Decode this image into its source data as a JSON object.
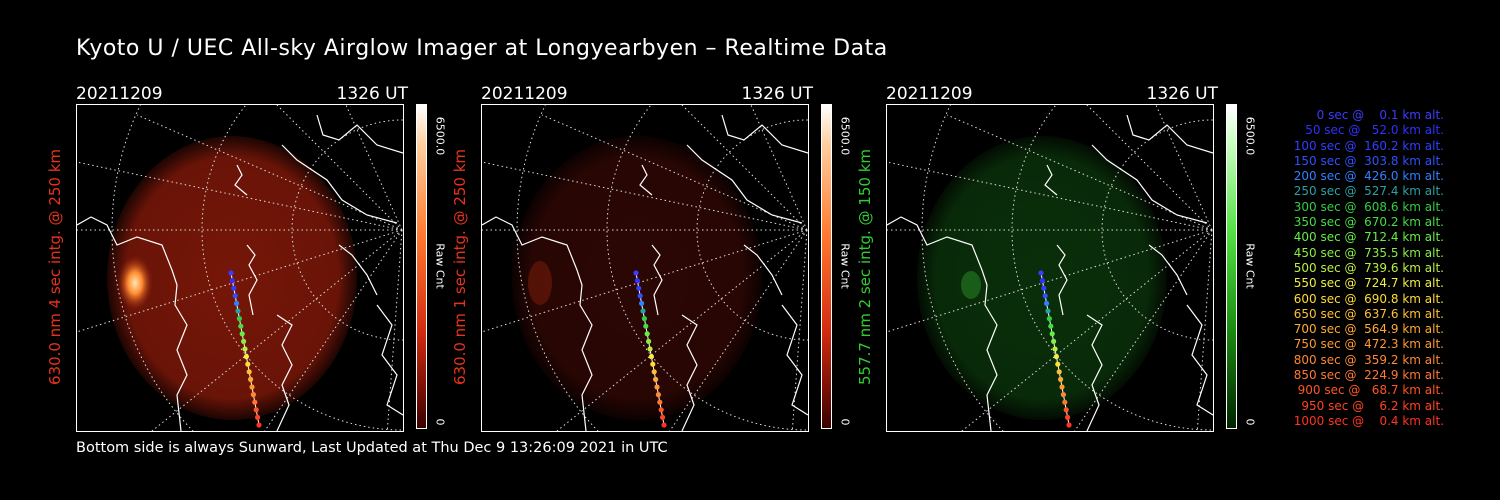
{
  "title": "Kyoto U / UEC All-sky Airglow Imager at Longyearbyen – Realtime Data",
  "footer": "Bottom side is always Sunward, Last Updated at Thu Dec  9 13:26:09 2021 in UTC",
  "panels": [
    {
      "date": "20211209",
      "time": "1326 UT",
      "ylabel": "630.0 nm 4 sec intg. @ 250 km",
      "ylabel_color": "#e8331c",
      "cbar_max": "6500.0",
      "cbar_unit": "Raw Cnt",
      "cbar_min": "0",
      "glow_color": "#8a1a0a",
      "glow_opacity": 0.85,
      "colormap": "red"
    },
    {
      "date": "20211209",
      "time": "1326 UT",
      "ylabel": "630.0 nm 1 sec intg. @ 250 km",
      "ylabel_color": "#e8331c",
      "cbar_max": "6500.0",
      "cbar_unit": "Raw Cnt",
      "cbar_min": "0",
      "glow_color": "#3a0905",
      "glow_opacity": 0.75,
      "colormap": "red"
    },
    {
      "date": "20211209",
      "time": "1326 UT",
      "ylabel": "557.7 nm 2 sec intg. @ 150 km",
      "ylabel_color": "#33cc33",
      "cbar_max": "6500.0",
      "cbar_unit": "Raw Cnt",
      "cbar_min": "0",
      "glow_color": "#0c3a0c",
      "glow_opacity": 0.8,
      "colormap": "green"
    }
  ],
  "legend": [
    {
      "text": "   0 sec @    0.1 km alt.",
      "color": "#3c3cff"
    },
    {
      "text": "  50 sec @   52.0 km alt.",
      "color": "#3030ff"
    },
    {
      "text": " 100 sec @  160.2 km alt.",
      "color": "#2f3fff"
    },
    {
      "text": " 150 sec @  303.8 km alt.",
      "color": "#3050ff"
    },
    {
      "text": " 200 sec @  426.0 km alt.",
      "color": "#3080ff"
    },
    {
      "text": " 250 sec @  527.4 km alt.",
      "color": "#2ca0a0"
    },
    {
      "text": " 300 sec @  608.6 km alt.",
      "color": "#33cc44"
    },
    {
      "text": " 350 sec @  670.2 km alt.",
      "color": "#44dd44"
    },
    {
      "text": " 400 sec @  712.4 km alt.",
      "color": "#66ee44"
    },
    {
      "text": " 450 sec @  735.5 km alt.",
      "color": "#88ee44"
    },
    {
      "text": " 500 sec @  739.6 km alt.",
      "color": "#bbee44"
    },
    {
      "text": " 550 sec @  724.7 km alt.",
      "color": "#eeee44"
    },
    {
      "text": " 600 sec @  690.8 km alt.",
      "color": "#ffdd33"
    },
    {
      "text": " 650 sec @  637.6 km alt.",
      "color": "#ffc033"
    },
    {
      "text": " 700 sec @  564.9 km alt.",
      "color": "#ffaa33"
    },
    {
      "text": " 750 sec @  472.3 km alt.",
      "color": "#ff9933"
    },
    {
      "text": " 800 sec @  359.2 km alt.",
      "color": "#ff8833"
    },
    {
      "text": " 850 sec @  224.9 km alt.",
      "color": "#ff7733"
    },
    {
      "text": " 900 sec @   68.7 km alt.",
      "color": "#ff5522"
    },
    {
      "text": " 950 sec @    6.2 km alt.",
      "color": "#ff4422"
    },
    {
      "text": "1000 sec @    0.4 km alt.",
      "color": "#ff3322"
    }
  ]
}
